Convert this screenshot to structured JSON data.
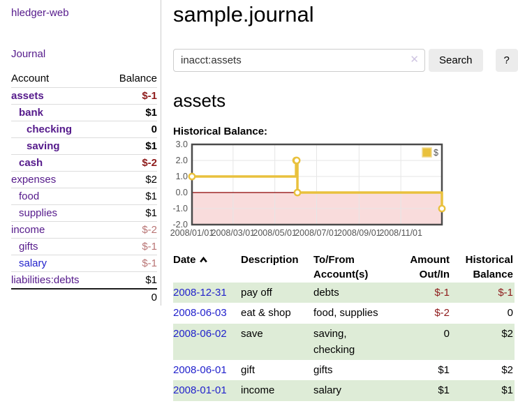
{
  "colors": {
    "accent_purple": "#551a8b",
    "link_blue": "#2222cc",
    "negative_red": "#8e1b1b",
    "negative_soft_red": "#b97575",
    "row_stripe_green": "#deecd7",
    "chart_gold": "#e9c13d",
    "chart_negative_area": "#f9dcdc",
    "chart_zero_line": "#8b0000"
  },
  "sidebar": {
    "brand": "hledger-web",
    "nav": [
      {
        "label": "Journal"
      }
    ],
    "accounts_table": {
      "headers": [
        "Account",
        "Balance"
      ],
      "rows": [
        {
          "account": "assets",
          "depth": 1,
          "bold": true,
          "balance": "$-1",
          "neg": "strong"
        },
        {
          "account": "bank",
          "depth": 2,
          "bold": true,
          "balance": "$1",
          "neg": "none"
        },
        {
          "account": "checking",
          "depth": 3,
          "bold": true,
          "balance": "0",
          "neg": "none"
        },
        {
          "account": "saving",
          "depth": 3,
          "bold": true,
          "balance": "$1",
          "neg": "none"
        },
        {
          "account": "cash",
          "depth": 2,
          "bold": true,
          "balance": "$-2",
          "neg": "strong"
        },
        {
          "account": "expenses",
          "depth": 1,
          "bold": false,
          "balance": "$2",
          "neg": "none"
        },
        {
          "account": "food",
          "depth": 2,
          "bold": false,
          "balance": "$1",
          "neg": "none"
        },
        {
          "account": "supplies",
          "depth": 2,
          "bold": false,
          "balance": "$1",
          "neg": "none"
        },
        {
          "account": "income",
          "depth": 1,
          "bold": false,
          "balance": "$-2",
          "neg": "soft"
        },
        {
          "account": "gifts",
          "depth": 2,
          "bold": false,
          "balance": "$-1",
          "neg": "soft"
        },
        {
          "account": "salary",
          "depth": 2,
          "bold": false,
          "balance": "$-1",
          "neg": "soft",
          "link_color": "blue"
        },
        {
          "account": "liabilities:debts",
          "depth": 1,
          "bold": false,
          "balance": "$1",
          "neg": "none"
        }
      ],
      "total": "0"
    }
  },
  "header": {
    "title": "sample.journal"
  },
  "search": {
    "query": "inacct:assets",
    "clear_icon": "✕",
    "button_label": "Search",
    "help_label": "?"
  },
  "account_page": {
    "heading": "assets",
    "chart_label": "Historical Balance:"
  },
  "chart_data": {
    "type": "line",
    "step": true,
    "series": [
      {
        "name": "$",
        "color": "#e9c13d",
        "points": [
          [
            "2008-01-01",
            1
          ],
          [
            "2008-06-01",
            2
          ],
          [
            "2008-06-02",
            2
          ],
          [
            "2008-06-03",
            0
          ],
          [
            "2008-12-31",
            -1
          ]
        ]
      }
    ],
    "xlim": [
      "2008-01-01",
      "2008-12-31"
    ],
    "ylim": [
      -2,
      3
    ],
    "yticks": [
      {
        "value": 3,
        "label": "3.0"
      },
      {
        "value": 2,
        "label": "2.0"
      },
      {
        "value": 1,
        "label": "1.0"
      },
      {
        "value": 0,
        "label": "0.0"
      },
      {
        "value": -1,
        "label": "-1.0"
      },
      {
        "value": -2,
        "label": "-2.0"
      }
    ],
    "xticks": [
      {
        "date": "2008-01-01",
        "label": "2008/01/01"
      },
      {
        "date": "2008-03-01",
        "label": "2008/03/01"
      },
      {
        "date": "2008-05-01",
        "label": "2008/05/01"
      },
      {
        "date": "2008-07-01",
        "label": "2008/07/01"
      },
      {
        "date": "2008-09-01",
        "label": "2008/09/01"
      },
      {
        "date": "2008-11-01",
        "label": "2008/11/01"
      }
    ],
    "grid": true,
    "negative_region": {
      "from": 0,
      "to": -2,
      "color": "#f9dcdc"
    },
    "zero_line_color": "#8b0000",
    "legend": [
      {
        "label": "$",
        "color": "#e9c13d"
      }
    ],
    "legend_position": "top-right"
  },
  "register_table": {
    "headers": [
      {
        "line1": "Date",
        "sort": "ascending",
        "icon": "chevron-up"
      },
      {
        "line1": "Description"
      },
      {
        "line1": "To/From",
        "line2": "Account(s)"
      },
      {
        "line1": "Amount",
        "line2": "Out/In",
        "align": "right"
      },
      {
        "line1": "Historical",
        "line2": "Balance",
        "align": "right"
      }
    ],
    "rows": [
      {
        "date": "2008-12-31",
        "description": "pay off",
        "accounts": "debts",
        "amount": "$-1",
        "amount_neg": true,
        "balance": "$-1",
        "balance_neg": true
      },
      {
        "date": "2008-06-03",
        "description": "eat & shop",
        "accounts": "food, supplies",
        "amount": "$-2",
        "amount_neg": true,
        "balance": "0",
        "balance_neg": false
      },
      {
        "date": "2008-06-02",
        "description": "save",
        "accounts": "saving, checking",
        "amount": "0",
        "amount_neg": false,
        "balance": "$2",
        "balance_neg": false
      },
      {
        "date": "2008-06-01",
        "description": "gift",
        "accounts": "gifts",
        "amount": "$1",
        "amount_neg": false,
        "balance": "$2",
        "balance_neg": false
      },
      {
        "date": "2008-01-01",
        "description": "income",
        "accounts": "salary",
        "amount": "$1",
        "amount_neg": false,
        "balance": "$1",
        "balance_neg": false
      }
    ]
  }
}
